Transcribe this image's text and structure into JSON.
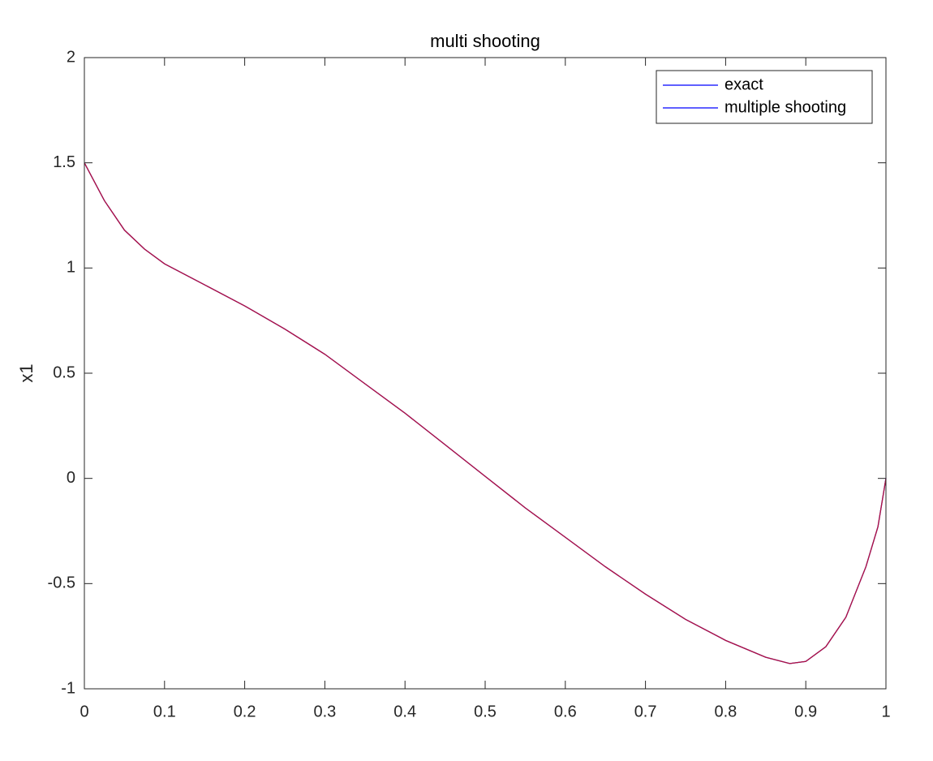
{
  "chart_data": {
    "type": "line",
    "title": "multi shooting",
    "y_label": "x1",
    "x": [
      0,
      0.025,
      0.05,
      0.075,
      0.1,
      0.15,
      0.2,
      0.25,
      0.3,
      0.35,
      0.4,
      0.45,
      0.5,
      0.55,
      0.6,
      0.65,
      0.7,
      0.75,
      0.8,
      0.85,
      0.88,
      0.9,
      0.925,
      0.95,
      0.975,
      0.99,
      1.0
    ],
    "series": [
      {
        "name": "exact",
        "color": "#0000ff",
        "legend_color": "#0000ff",
        "values": [
          1.5,
          1.32,
          1.18,
          1.09,
          1.02,
          0.92,
          0.82,
          0.71,
          0.59,
          0.45,
          0.31,
          0.16,
          0.01,
          -0.14,
          -0.28,
          -0.42,
          -0.55,
          -0.67,
          -0.77,
          -0.85,
          -0.88,
          -0.87,
          -0.8,
          -0.66,
          -0.42,
          -0.23,
          0
        ]
      },
      {
        "name": "multiple shooting",
        "color": "#b4143c",
        "legend_color": "#0000ff",
        "values": [
          1.5,
          1.32,
          1.18,
          1.09,
          1.02,
          0.92,
          0.82,
          0.71,
          0.59,
          0.45,
          0.31,
          0.16,
          0.01,
          -0.14,
          -0.28,
          -0.42,
          -0.55,
          -0.67,
          -0.77,
          -0.85,
          -0.88,
          -0.87,
          -0.8,
          -0.66,
          -0.42,
          -0.23,
          0
        ]
      }
    ],
    "xlim": [
      0,
      1
    ],
    "xticks": [
      0,
      0.1,
      0.2,
      0.3,
      0.4,
      0.5,
      0.6,
      0.7,
      0.8,
      0.9,
      1
    ],
    "ylim": [
      -1,
      2
    ],
    "yticks": [
      -1,
      -0.5,
      0,
      0.5,
      1,
      1.5,
      2
    ],
    "legend": "top-right",
    "grid": false
  }
}
